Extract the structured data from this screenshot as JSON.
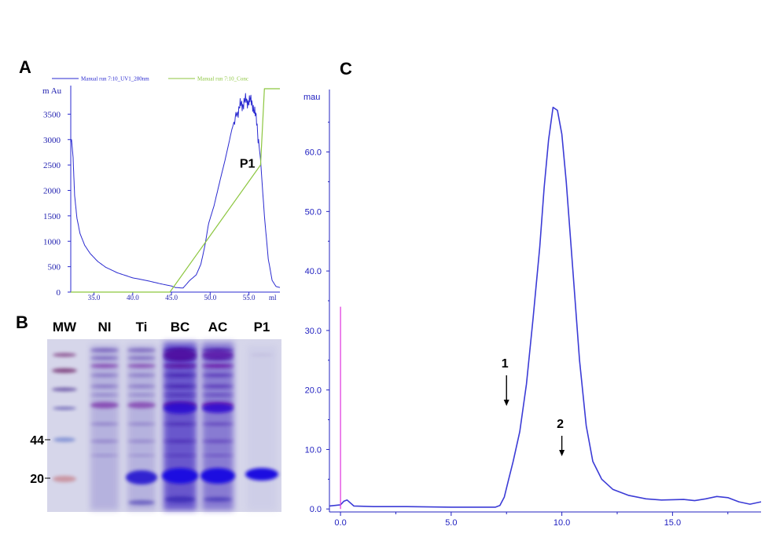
{
  "panels": {
    "a": {
      "letter": "A",
      "legend": [
        {
          "label": "Manual run 7:10_UV1_280nm",
          "color": "#2a2ad0"
        },
        {
          "label": "Manual run 7:10_Conc",
          "color": "#8cc63f"
        }
      ]
    },
    "b": {
      "letter": "B",
      "lanes": [
        "MW",
        "NI",
        "Ti",
        "BC",
        "AC",
        "P1"
      ],
      "markers": [
        "44",
        "20"
      ]
    },
    "c": {
      "letter": "C"
    }
  },
  "chart_data": [
    {
      "type": "line",
      "panel": "A",
      "ylabel": "m Au",
      "xlabel": "ml",
      "xlim": [
        32,
        59
      ],
      "ylim": [
        0,
        4000
      ],
      "x_ticks": [
        "35.0",
        "40.0",
        "45.0",
        "50.0",
        "55.0"
      ],
      "y_ticks": [
        "0",
        "500",
        "1000",
        "1500",
        "2000",
        "2500",
        "3000",
        "3500"
      ],
      "annotations": [
        {
          "text": "P1",
          "x": 54.8,
          "y": 2450
        }
      ],
      "series": [
        {
          "name": "Manual run 7:10_UV1_280nm",
          "color": "#2a2ad0",
          "x": [
            32.0,
            32.1,
            32.3,
            32.5,
            32.8,
            33.2,
            33.8,
            34.5,
            35.5,
            36.5,
            38.0,
            40.0,
            42.0,
            44.0,
            45.0,
            45.5,
            46.5,
            47.3,
            48.2,
            48.8,
            49.3,
            49.8,
            50.5,
            51.2,
            52.0,
            52.8,
            53.5,
            54.0,
            54.5,
            55.0,
            55.5,
            56.0,
            56.5,
            57.0,
            57.5,
            58.0,
            58.5,
            59.0
          ],
          "y": [
            2950,
            3000,
            2650,
            1900,
            1450,
            1150,
            920,
            760,
            600,
            490,
            380,
            280,
            220,
            150,
            120,
            90,
            80,
            220,
            340,
            550,
            900,
            1350,
            1700,
            2150,
            2650,
            3200,
            3550,
            3680,
            3750,
            3770,
            3700,
            3350,
            2600,
            1500,
            650,
            230,
            110,
            90
          ]
        },
        {
          "name": "Manual run 7:10_Conc",
          "color": "#8cc63f",
          "x": [
            32.0,
            44.8,
            56.5,
            56.5,
            57.0,
            59.0
          ],
          "y": [
            0,
            0,
            2500,
            2500,
            4000,
            4000
          ]
        }
      ]
    },
    {
      "type": "line",
      "panel": "C",
      "ylabel": "mau",
      "xlim": [
        -0.5,
        19.0
      ],
      "ylim": [
        -0.5,
        70.5
      ],
      "x_ticks": [
        "0.0",
        "5.0",
        "10.0",
        "15.0"
      ],
      "y_ticks": [
        "0.0",
        "10.0",
        "20.0",
        "30.0",
        "40.0",
        "50.0",
        "60.0"
      ],
      "annotations": [
        {
          "text": "1",
          "x": 7.5
        },
        {
          "text": "2",
          "x": 10.0
        }
      ],
      "series": [
        {
          "name": "",
          "color": "#3b3bd6",
          "x": [
            -0.5,
            0.0,
            0.15,
            0.3,
            0.6,
            1.5,
            3.0,
            5.0,
            6.5,
            7.0,
            7.2,
            7.4,
            7.6,
            7.8,
            8.1,
            8.4,
            8.7,
            9.0,
            9.2,
            9.4,
            9.6,
            9.8,
            10.0,
            10.2,
            10.5,
            10.8,
            11.1,
            11.4,
            11.8,
            12.3,
            13.0,
            13.8,
            14.5,
            15.5,
            16.0,
            16.5,
            17.0,
            17.5,
            18.0,
            18.5,
            19.0
          ],
          "y": [
            0.5,
            0.7,
            1.3,
            1.5,
            0.5,
            0.4,
            0.4,
            0.3,
            0.3,
            0.3,
            0.6,
            2.0,
            5.0,
            8.0,
            13.0,
            21.0,
            32.0,
            44.0,
            54.0,
            62.0,
            67.5,
            67.0,
            63.0,
            55.0,
            40.0,
            25.0,
            14.0,
            8.0,
            5.0,
            3.3,
            2.3,
            1.7,
            1.5,
            1.6,
            1.4,
            1.7,
            2.1,
            1.9,
            1.2,
            0.8,
            1.2
          ]
        },
        {
          "name": "",
          "color": "#e040e0",
          "x": [
            0.0,
            0.0
          ],
          "y": [
            0.0,
            34.0
          ]
        }
      ]
    }
  ]
}
